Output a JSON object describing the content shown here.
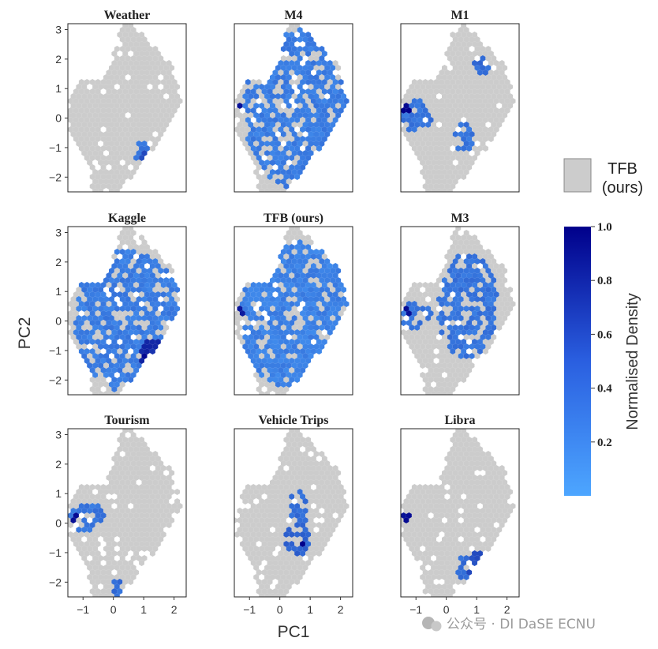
{
  "chart_data": {
    "type": "hexbin",
    "xlabel": "PC1",
    "ylabel": "PC2",
    "xlim": [
      -1.5,
      2.4
    ],
    "ylim": [
      -2.5,
      3.2
    ],
    "xticks": [
      -1,
      0,
      1,
      2
    ],
    "yticks": [
      -2,
      -1,
      0,
      1,
      2,
      3
    ],
    "panels": [
      {
        "title": "Weather",
        "regions": [
          {
            "x": 0.9,
            "y": -1.2,
            "rx": 0.28,
            "ry": 0.55,
            "d": 0.3
          },
          {
            "x": 1.1,
            "y": -1.5,
            "rx": 0.2,
            "ry": 0.35,
            "d": 0.55
          },
          {
            "x": 1.05,
            "y": -1.5,
            "rx": 0.07,
            "ry": 0.12,
            "d": 1.0
          }
        ]
      },
      {
        "title": "M4",
        "regions": [
          {
            "x": 0.6,
            "y": 0.3,
            "rx": 1.8,
            "ry": 2.7,
            "d": 0.25
          },
          {
            "x": -1.3,
            "y": 0.3,
            "rx": 0.12,
            "ry": 0.15,
            "d": 0.95
          }
        ]
      },
      {
        "title": "M1",
        "regions": [
          {
            "x": -1.0,
            "y": 0.1,
            "rx": 0.55,
            "ry": 0.55,
            "d": 0.3
          },
          {
            "x": -1.3,
            "y": 0.3,
            "rx": 0.12,
            "ry": 0.15,
            "d": 1.0
          },
          {
            "x": 0.6,
            "y": -0.6,
            "rx": 0.3,
            "ry": 0.6,
            "d": 0.3
          },
          {
            "x": 1.2,
            "y": 1.8,
            "rx": 0.3,
            "ry": 0.3,
            "d": 0.35
          }
        ]
      },
      {
        "title": "Kaggle",
        "regions": [
          {
            "x": 0.5,
            "y": 0.0,
            "rx": 1.8,
            "ry": 2.4,
            "d": 0.25
          },
          {
            "x": 1.3,
            "y": -1.1,
            "rx": 0.45,
            "ry": 0.55,
            "d": 0.75
          },
          {
            "x": 1.1,
            "y": -1.4,
            "rx": 0.15,
            "ry": 0.25,
            "d": 1.0
          }
        ]
      },
      {
        "title": "TFB (ours)",
        "regions": [
          {
            "x": 0.5,
            "y": 0.2,
            "rx": 1.8,
            "ry": 2.6,
            "d": 0.22
          },
          {
            "x": -1.3,
            "y": 0.3,
            "rx": 0.1,
            "ry": 0.12,
            "d": 0.85
          },
          {
            "x": 1.2,
            "y": -1.4,
            "rx": 0.2,
            "ry": 0.2,
            "d": 0.45
          }
        ]
      },
      {
        "title": "M3",
        "regions": [
          {
            "x": -1.0,
            "y": 0.2,
            "rx": 0.5,
            "ry": 0.5,
            "d": 0.3
          },
          {
            "x": -1.3,
            "y": 0.3,
            "rx": 0.1,
            "ry": 0.12,
            "d": 0.9
          },
          {
            "x": 0.7,
            "y": 0.5,
            "rx": 1.0,
            "ry": 1.8,
            "d": 0.3
          }
        ]
      },
      {
        "title": "Tourism",
        "regions": [
          {
            "x": -0.9,
            "y": 0.2,
            "rx": 0.6,
            "ry": 0.5,
            "d": 0.3
          },
          {
            "x": -1.3,
            "y": 0.2,
            "rx": 0.1,
            "ry": 0.12,
            "d": 0.9
          },
          {
            "x": 0.1,
            "y": -2.2,
            "rx": 0.2,
            "ry": 0.3,
            "d": 0.35
          }
        ]
      },
      {
        "title": "Vehicle Trips",
        "regions": [
          {
            "x": 0.6,
            "y": -0.6,
            "rx": 0.45,
            "ry": 0.55,
            "d": 0.4
          },
          {
            "x": 0.7,
            "y": -0.7,
            "rx": 0.12,
            "ry": 0.15,
            "d": 1.0
          },
          {
            "x": 0.6,
            "y": 0.3,
            "rx": 0.3,
            "ry": 1.0,
            "d": 0.35
          }
        ]
      },
      {
        "title": "Libra",
        "regions": [
          {
            "x": -1.3,
            "y": 0.2,
            "rx": 0.15,
            "ry": 0.2,
            "d": 0.9
          },
          {
            "x": 1.0,
            "y": -1.4,
            "rx": 0.35,
            "ry": 0.4,
            "d": 0.55
          },
          {
            "x": 0.6,
            "y": -1.5,
            "rx": 0.25,
            "ry": 0.4,
            "d": 0.35
          }
        ]
      }
    ],
    "legend": {
      "label_line1": "TFB",
      "label_line2": "(ours)",
      "color": "#cccccc"
    },
    "colorbar": {
      "label": "Normalised Density",
      "ticks": [
        0.2,
        0.4,
        0.6,
        0.8,
        1.0
      ],
      "tick_labels": [
        "0.2",
        "0.4",
        "0.6",
        "0.8",
        "1.0"
      ],
      "range": [
        0.0,
        1.0
      ],
      "color_low": "#4da6ff",
      "color_high": "#00008b"
    },
    "background_color": "#cccccc",
    "palette": {
      "blue": "#4a90e8",
      "dark_blue": "#00008b"
    }
  },
  "watermark": "公众号 · DI DaSE ECNU"
}
